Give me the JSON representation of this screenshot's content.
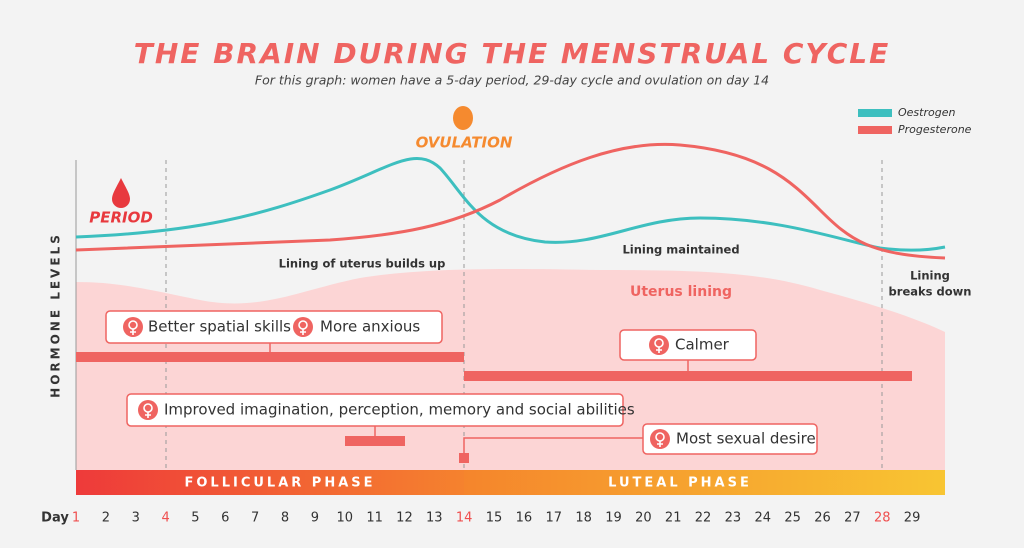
{
  "header": {
    "title": "THE BRAIN DURING THE MENSTRUAL CYCLE",
    "subtitle": "For this graph: women have a 5-day period, 29-day cycle and ovulation on day 14"
  },
  "legend": [
    {
      "name": "Oestrogen",
      "color": "#3dbfbf"
    },
    {
      "name": "Progesterone",
      "color": "#ef6461"
    }
  ],
  "y_axis_label": "HORMONE LEVELS",
  "markers": {
    "period": "PERIOD",
    "ovulation": "OVULATION"
  },
  "annotations": {
    "builds_up": "Lining of uterus builds up",
    "maintained": "Lining maintained",
    "uterus_lining": "Uterus lining",
    "breaks_down": [
      "Lining",
      "breaks down"
    ]
  },
  "effects": {
    "spatial": "Better spatial skills",
    "anxious": "More anxious",
    "calmer": "Calmer",
    "imagination": "Improved imagination, perception, memory and social abilities",
    "desire": "Most sexual desire"
  },
  "phases": {
    "follicular": "FOLLICULAR PHASE",
    "luteal": "LUTEAL PHASE"
  },
  "x_axis": {
    "label": "Day",
    "days": [
      1,
      2,
      3,
      4,
      5,
      6,
      7,
      8,
      9,
      10,
      11,
      12,
      13,
      14,
      15,
      16,
      17,
      18,
      19,
      20,
      21,
      22,
      23,
      24,
      25,
      26,
      27,
      28,
      29
    ],
    "marked_days": [
      1,
      4,
      14,
      28
    ]
  }
}
